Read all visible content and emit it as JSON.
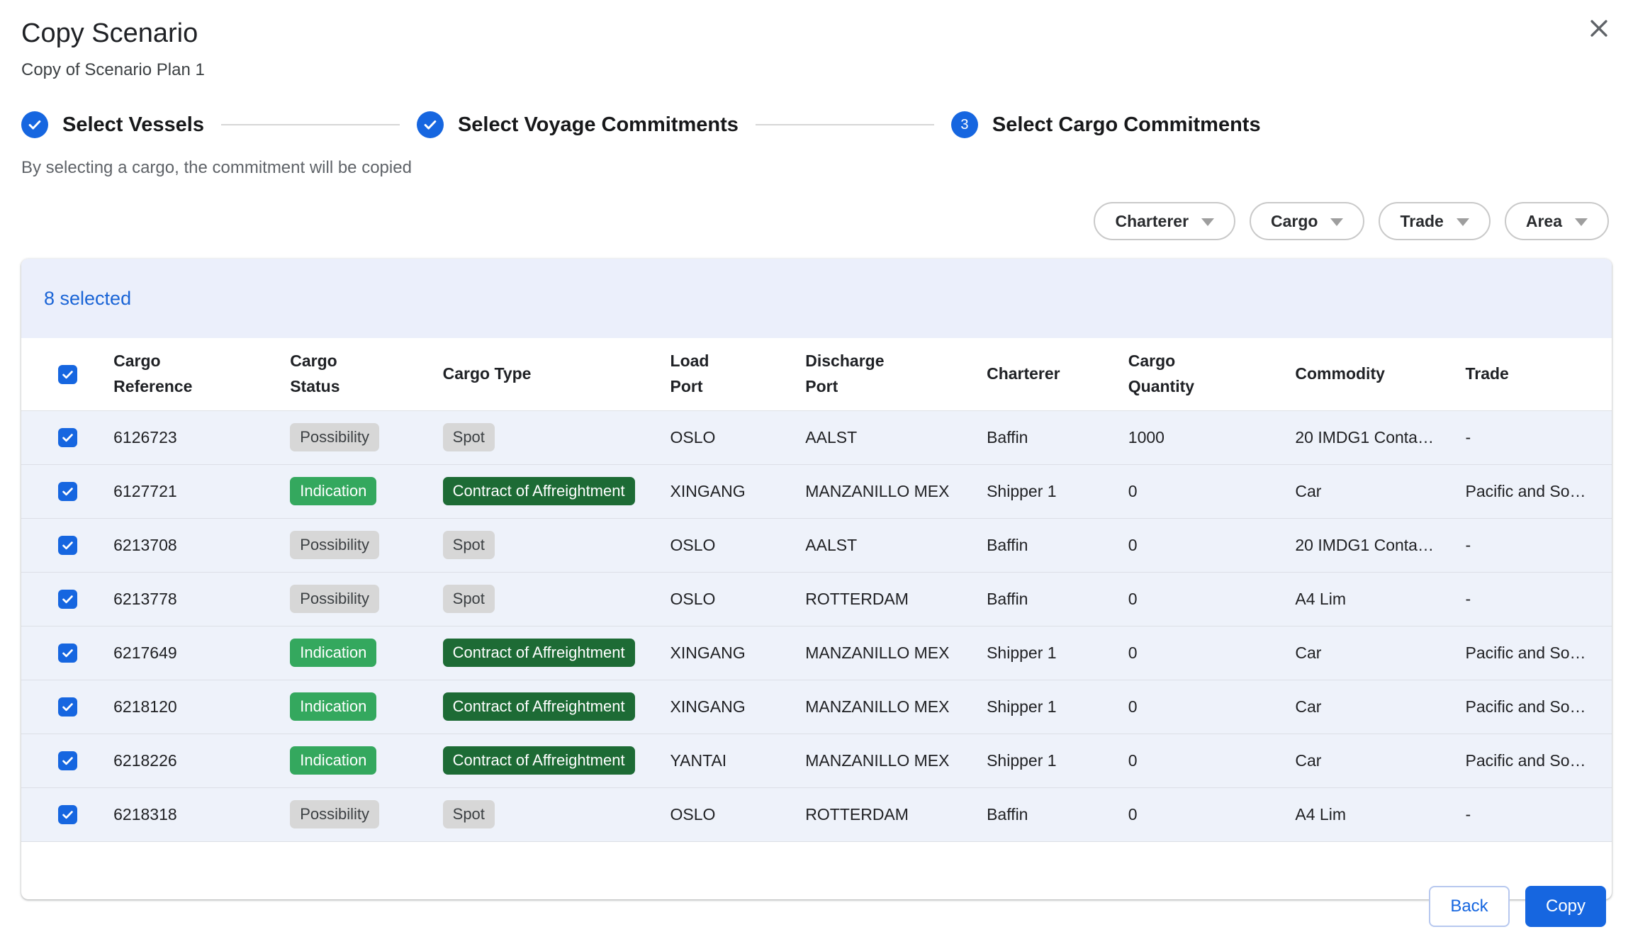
{
  "dialog": {
    "title": "Copy Scenario",
    "subtitle": "Copy of Scenario Plan 1",
    "hint": "By selecting a cargo, the commitment will be copied"
  },
  "stepper": {
    "steps": [
      {
        "label": "Select Vessels",
        "state": "complete"
      },
      {
        "label": "Select Voyage Commitments",
        "state": "complete"
      },
      {
        "label": "Select Cargo Commitments",
        "state": "active",
        "number": "3"
      }
    ]
  },
  "filters": [
    {
      "label": "Charterer"
    },
    {
      "label": "Cargo"
    },
    {
      "label": "Trade"
    },
    {
      "label": "Area"
    }
  ],
  "table": {
    "selected_count_label": "8 selected",
    "columns": [
      "Cargo Reference",
      "Cargo Status",
      "Cargo Type",
      "Load Port",
      "Discharge Port",
      "Charterer",
      "Cargo Quantity",
      "Commodity",
      "Trade"
    ],
    "rows": [
      {
        "cargo_reference": "6126723",
        "cargo_status": "Possibility",
        "cargo_type": "Spot",
        "load_port": "OSLO",
        "discharge_port": "AALST",
        "charterer": "Baffin",
        "cargo_quantity": "1000",
        "commodity": "20 IMDG1 Conta…",
        "trade": "-"
      },
      {
        "cargo_reference": "6127721",
        "cargo_status": "Indication",
        "cargo_type": "Contract of Affreightment",
        "load_port": "XINGANG",
        "discharge_port": "MANZANILLO MEX",
        "charterer": "Shipper 1",
        "cargo_quantity": "0",
        "commodity": "Car",
        "trade": "Pacific and So…"
      },
      {
        "cargo_reference": "6213708",
        "cargo_status": "Possibility",
        "cargo_type": "Spot",
        "load_port": "OSLO",
        "discharge_port": "AALST",
        "charterer": "Baffin",
        "cargo_quantity": "0",
        "commodity": "20 IMDG1 Conta…",
        "trade": "-"
      },
      {
        "cargo_reference": "6213778",
        "cargo_status": "Possibility",
        "cargo_type": "Spot",
        "load_port": "OSLO",
        "discharge_port": "ROTTERDAM",
        "charterer": "Baffin",
        "cargo_quantity": "0",
        "commodity": "A4 Lim",
        "trade": "-"
      },
      {
        "cargo_reference": "6217649",
        "cargo_status": "Indication",
        "cargo_type": "Contract of Affreightment",
        "load_port": "XINGANG",
        "discharge_port": "MANZANILLO MEX",
        "charterer": "Shipper 1",
        "cargo_quantity": "0",
        "commodity": "Car",
        "trade": "Pacific and So…"
      },
      {
        "cargo_reference": "6218120",
        "cargo_status": "Indication",
        "cargo_type": "Contract of Affreightment",
        "load_port": "XINGANG",
        "discharge_port": "MANZANILLO MEX",
        "charterer": "Shipper 1",
        "cargo_quantity": "0",
        "commodity": "Car",
        "trade": "Pacific and So…"
      },
      {
        "cargo_reference": "6218226",
        "cargo_status": "Indication",
        "cargo_type": "Contract of Affreightment",
        "load_port": "YANTAI",
        "discharge_port": "MANZANILLO MEX",
        "charterer": "Shipper 1",
        "cargo_quantity": "0",
        "commodity": "Car",
        "trade": "Pacific and So…"
      },
      {
        "cargo_reference": "6218318",
        "cargo_status": "Possibility",
        "cargo_type": "Spot",
        "load_port": "OSLO",
        "discharge_port": "ROTTERDAM",
        "charterer": "Baffin",
        "cargo_quantity": "0",
        "commodity": "A4 Lim",
        "trade": "-"
      }
    ]
  },
  "footer": {
    "back_label": "Back",
    "copy_label": "Copy"
  },
  "colors": {
    "accent": "#1666e0",
    "banner_bg": "#ebeffb",
    "row_bg": "#eef2fa",
    "badge_gray": "#d7d7d7",
    "badge_green": "#34a85e",
    "badge_dark_green": "#1d6b35"
  }
}
